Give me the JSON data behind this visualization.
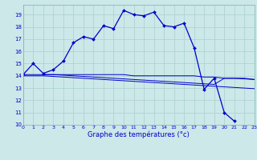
{
  "title": "Graphe des températures (°c)",
  "background_color": "#cce8e8",
  "grid_color": "#aacfcf",
  "line_color": "#0000cc",
  "xlim": [
    0,
    23
  ],
  "ylim": [
    10,
    19.8
  ],
  "yticks": [
    10,
    11,
    12,
    13,
    14,
    15,
    16,
    17,
    18,
    19
  ],
  "xticks": [
    0,
    1,
    2,
    3,
    4,
    5,
    6,
    7,
    8,
    9,
    10,
    11,
    12,
    13,
    14,
    15,
    16,
    17,
    18,
    19,
    20,
    21,
    22,
    23
  ],
  "series1_x": [
    0,
    1,
    2,
    3,
    4,
    5,
    6,
    7,
    8,
    9,
    10,
    11,
    12,
    13,
    14,
    15,
    16,
    17,
    18,
    19,
    20,
    21
  ],
  "series1_y": [
    14.1,
    15.0,
    14.2,
    14.5,
    15.2,
    16.7,
    17.2,
    17.0,
    18.1,
    17.85,
    19.35,
    19.0,
    18.9,
    19.2,
    18.1,
    18.0,
    18.3,
    16.3,
    12.9,
    13.8,
    11.0,
    10.3
  ],
  "series2_x": [
    0,
    1,
    2,
    3,
    4,
    5,
    6,
    7,
    8,
    9,
    10,
    11,
    12,
    13,
    14,
    15,
    16,
    17,
    18,
    19,
    20,
    21,
    22,
    23
  ],
  "series2_y": [
    14.1,
    14.1,
    14.1,
    14.1,
    14.1,
    14.1,
    14.1,
    14.1,
    14.1,
    14.1,
    14.1,
    14.0,
    14.0,
    14.0,
    14.0,
    14.0,
    14.0,
    14.0,
    13.9,
    13.9,
    13.8,
    13.8,
    13.8,
    13.7
  ],
  "series3_x": [
    0,
    1,
    2,
    3,
    4,
    5,
    6,
    7,
    8,
    9,
    10,
    11,
    12,
    13,
    14,
    15,
    16,
    17,
    18,
    19,
    20,
    21,
    22,
    23
  ],
  "series3_y": [
    14.0,
    14.0,
    14.0,
    13.95,
    13.9,
    13.85,
    13.8,
    13.75,
    13.7,
    13.65,
    13.6,
    13.55,
    13.5,
    13.45,
    13.4,
    13.35,
    13.3,
    13.25,
    13.2,
    13.15,
    13.1,
    13.05,
    13.0,
    12.95
  ],
  "series4_x": [
    2,
    3,
    4,
    5,
    6,
    7,
    8,
    9,
    10,
    11,
    12,
    13,
    14,
    15,
    16,
    17,
    18,
    19,
    20,
    21,
    22,
    23
  ],
  "series4_y": [
    14.1,
    14.1,
    14.05,
    14.0,
    13.95,
    13.9,
    13.85,
    13.8,
    13.75,
    13.7,
    13.65,
    13.6,
    13.55,
    13.5,
    13.45,
    13.4,
    13.35,
    13.3,
    13.8,
    13.8,
    13.75,
    13.7
  ]
}
